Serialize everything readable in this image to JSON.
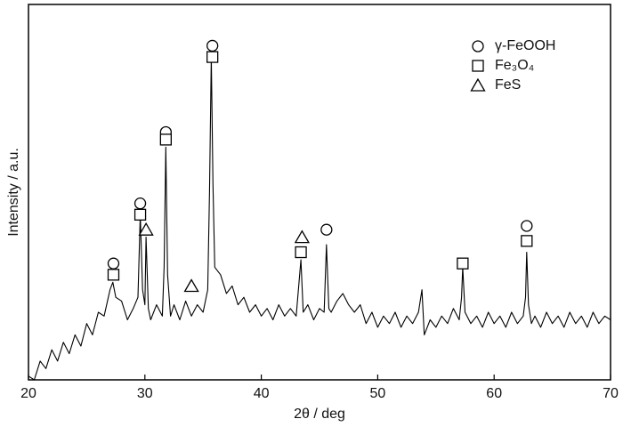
{
  "chart_data": {
    "type": "line",
    "xlabel": "2θ / deg",
    "ylabel": "Intensity / a.u.",
    "xlim": [
      20,
      70
    ],
    "xticks": [
      20,
      30,
      40,
      50,
      60,
      70
    ],
    "ylim": [
      0,
      100
    ],
    "color": "#000000",
    "x": [
      20,
      20.5,
      21,
      21.5,
      22,
      22.5,
      23,
      23.5,
      24,
      24.5,
      25,
      25.5,
      26,
      26.5,
      27,
      27.25,
      27.5,
      28,
      28.5,
      29,
      29.4,
      29.6,
      29.8,
      30,
      30.1,
      30.3,
      30.5,
      31,
      31.5,
      31.65,
      31.8,
      31.95,
      32.2,
      32.5,
      33,
      33.5,
      34,
      34.5,
      35,
      35.4,
      35.55,
      35.7,
      35.85,
      36,
      36.5,
      37,
      37.5,
      38,
      38.5,
      39,
      39.5,
      40,
      40.5,
      41,
      41.5,
      42,
      42.5,
      43,
      43.4,
      43.6,
      44,
      44.5,
      45,
      45.4,
      45.6,
      45.8,
      46,
      46.5,
      47,
      47.5,
      48,
      48.5,
      49,
      49.5,
      50,
      50.5,
      51,
      51.5,
      52,
      52.5,
      53,
      53.5,
      53.8,
      54,
      54.5,
      55,
      55.5,
      56,
      56.5,
      57,
      57.2,
      57.3,
      57.5,
      58,
      58.5,
      59,
      59.5,
      60,
      60.5,
      61,
      61.5,
      62,
      62.5,
      62.7,
      62.8,
      62.95,
      63.2,
      63.5,
      64,
      64.5,
      65,
      65.5,
      66,
      66.5,
      67,
      67.5,
      68,
      68.5,
      69,
      69.5,
      70
    ],
    "values": [
      1,
      0,
      5,
      3,
      8,
      5,
      10,
      7,
      12,
      9,
      15,
      12,
      18,
      17,
      24,
      26,
      22,
      21,
      16,
      19,
      22,
      44,
      24,
      20,
      38,
      19,
      16,
      20,
      17,
      30,
      62,
      28,
      17,
      20,
      16,
      21,
      17,
      20,
      18,
      24,
      50,
      86,
      52,
      30,
      28,
      23,
      25,
      20,
      22,
      18,
      20,
      17,
      19,
      16,
      20,
      17,
      19,
      17,
      32,
      18,
      20,
      16,
      19,
      18,
      36,
      19,
      18,
      21,
      23,
      20,
      18,
      20,
      15,
      18,
      14,
      17,
      15,
      18,
      14,
      17,
      15,
      18,
      24,
      12,
      16,
      14,
      17,
      15,
      19,
      16,
      22,
      30,
      18,
      15,
      17,
      14,
      18,
      15,
      17,
      14,
      18,
      15,
      17,
      22,
      34,
      20,
      15,
      17,
      14,
      18,
      15,
      17,
      14,
      18,
      15,
      17,
      14,
      18,
      15,
      17,
      16
    ],
    "markers": [
      {
        "name": "γ-FeOOH",
        "shape": "circle",
        "x": [
          27.3,
          29.6,
          31.8,
          35.8,
          45.6,
          62.8
        ],
        "y": [
          31,
          47,
          66,
          89,
          40,
          41
        ]
      },
      {
        "name": "Fe₃O₄",
        "shape": "square",
        "x": [
          27.3,
          29.6,
          31.8,
          35.8,
          43.4,
          57.3,
          62.8
        ],
        "y": [
          28,
          44,
          64,
          86,
          34,
          31,
          37
        ]
      },
      {
        "name": "FeS",
        "shape": "triangle",
        "x": [
          30.1,
          34,
          43.5
        ],
        "y": [
          40,
          25,
          38
        ]
      }
    ],
    "legend": "upper right"
  }
}
